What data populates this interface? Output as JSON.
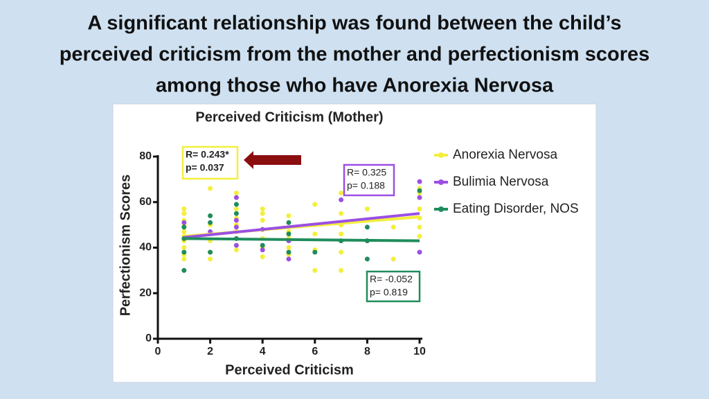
{
  "slide_title": [
    "A significant relationship was found between the child’s",
    "perceived criticism from the mother and perfectionism scores",
    "among those who have Anorexia Nervosa"
  ],
  "chart_data": {
    "type": "scatter",
    "title": "Perceived Criticism (Mother)",
    "x_label": "Perceived Criticism",
    "y_label": "Perfectionism Scores",
    "xlim": [
      0,
      10
    ],
    "ylim": [
      0,
      80
    ],
    "xticks": [
      0,
      2,
      4,
      6,
      8,
      10
    ],
    "yticks": [
      0,
      20,
      40,
      60,
      80
    ],
    "series": [
      {
        "name": "Anorexia Nervosa",
        "color": "#f3ef3c",
        "x": [
          1,
          1,
          1,
          1,
          1,
          1,
          1,
          1,
          1,
          1,
          2,
          2,
          2,
          2,
          2,
          2,
          3,
          3,
          3,
          3,
          3,
          3,
          3,
          3,
          3,
          4,
          4,
          4,
          4,
          4,
          4,
          4,
          5,
          5,
          5,
          5,
          5,
          5,
          6,
          6,
          6,
          6,
          6,
          7,
          7,
          7,
          7,
          7,
          7,
          8,
          8,
          8,
          9,
          9,
          10,
          10,
          10,
          10,
          10,
          10
        ],
        "values": [
          57,
          55,
          52,
          50,
          47,
          45,
          43,
          40,
          37,
          35,
          66,
          50,
          46,
          43,
          38,
          35,
          64,
          62,
          57,
          53,
          50,
          47,
          44,
          41,
          39,
          57,
          55,
          52,
          48,
          44,
          40,
          36,
          54,
          51,
          47,
          44,
          40,
          37,
          59,
          50,
          46,
          39,
          30,
          64,
          55,
          50,
          46,
          38,
          30,
          57,
          52,
          43,
          49,
          35,
          66,
          64,
          57,
          53,
          49,
          45
        ],
        "trend": {
          "x": [
            1,
            10
          ],
          "values": [
            45,
            53.5
          ]
        }
      },
      {
        "name": "Bulimia Nervosa",
        "color": "#9b4fe3",
        "x": [
          1,
          2,
          3,
          3,
          3,
          3,
          4,
          4,
          5,
          5,
          7,
          10,
          10,
          10
        ],
        "values": [
          51,
          47,
          62,
          52,
          49,
          41,
          48,
          39,
          43,
          35,
          61,
          69,
          62,
          38
        ],
        "trend": {
          "x": [
            1,
            10
          ],
          "values": [
            44.5,
            55
          ]
        }
      },
      {
        "name": "Eating Disorder, NOS",
        "color": "#1f8c5c",
        "x": [
          1,
          1,
          1,
          1,
          2,
          2,
          2,
          3,
          3,
          3,
          4,
          5,
          5,
          5,
          6,
          7,
          8,
          8,
          8,
          10
        ],
        "values": [
          49,
          44,
          38,
          30,
          54,
          51,
          38,
          59,
          55,
          44,
          41,
          51,
          46,
          38,
          38,
          43,
          49,
          43,
          35,
          65
        ],
        "trend": {
          "x": [
            1,
            10
          ],
          "values": [
            44,
            43
          ]
        }
      }
    ],
    "annotations": [
      {
        "lines": [
          "R= 0.243*",
          "p= 0.037"
        ],
        "color": "#f3ef3c"
      },
      {
        "lines": [
          "R= 0.325",
          "p= 0.188"
        ],
        "color": "#9b4fe3"
      },
      {
        "lines": [
          "R= -0.052",
          "p= 0.819"
        ],
        "color": "#1f8c5c"
      }
    ]
  }
}
